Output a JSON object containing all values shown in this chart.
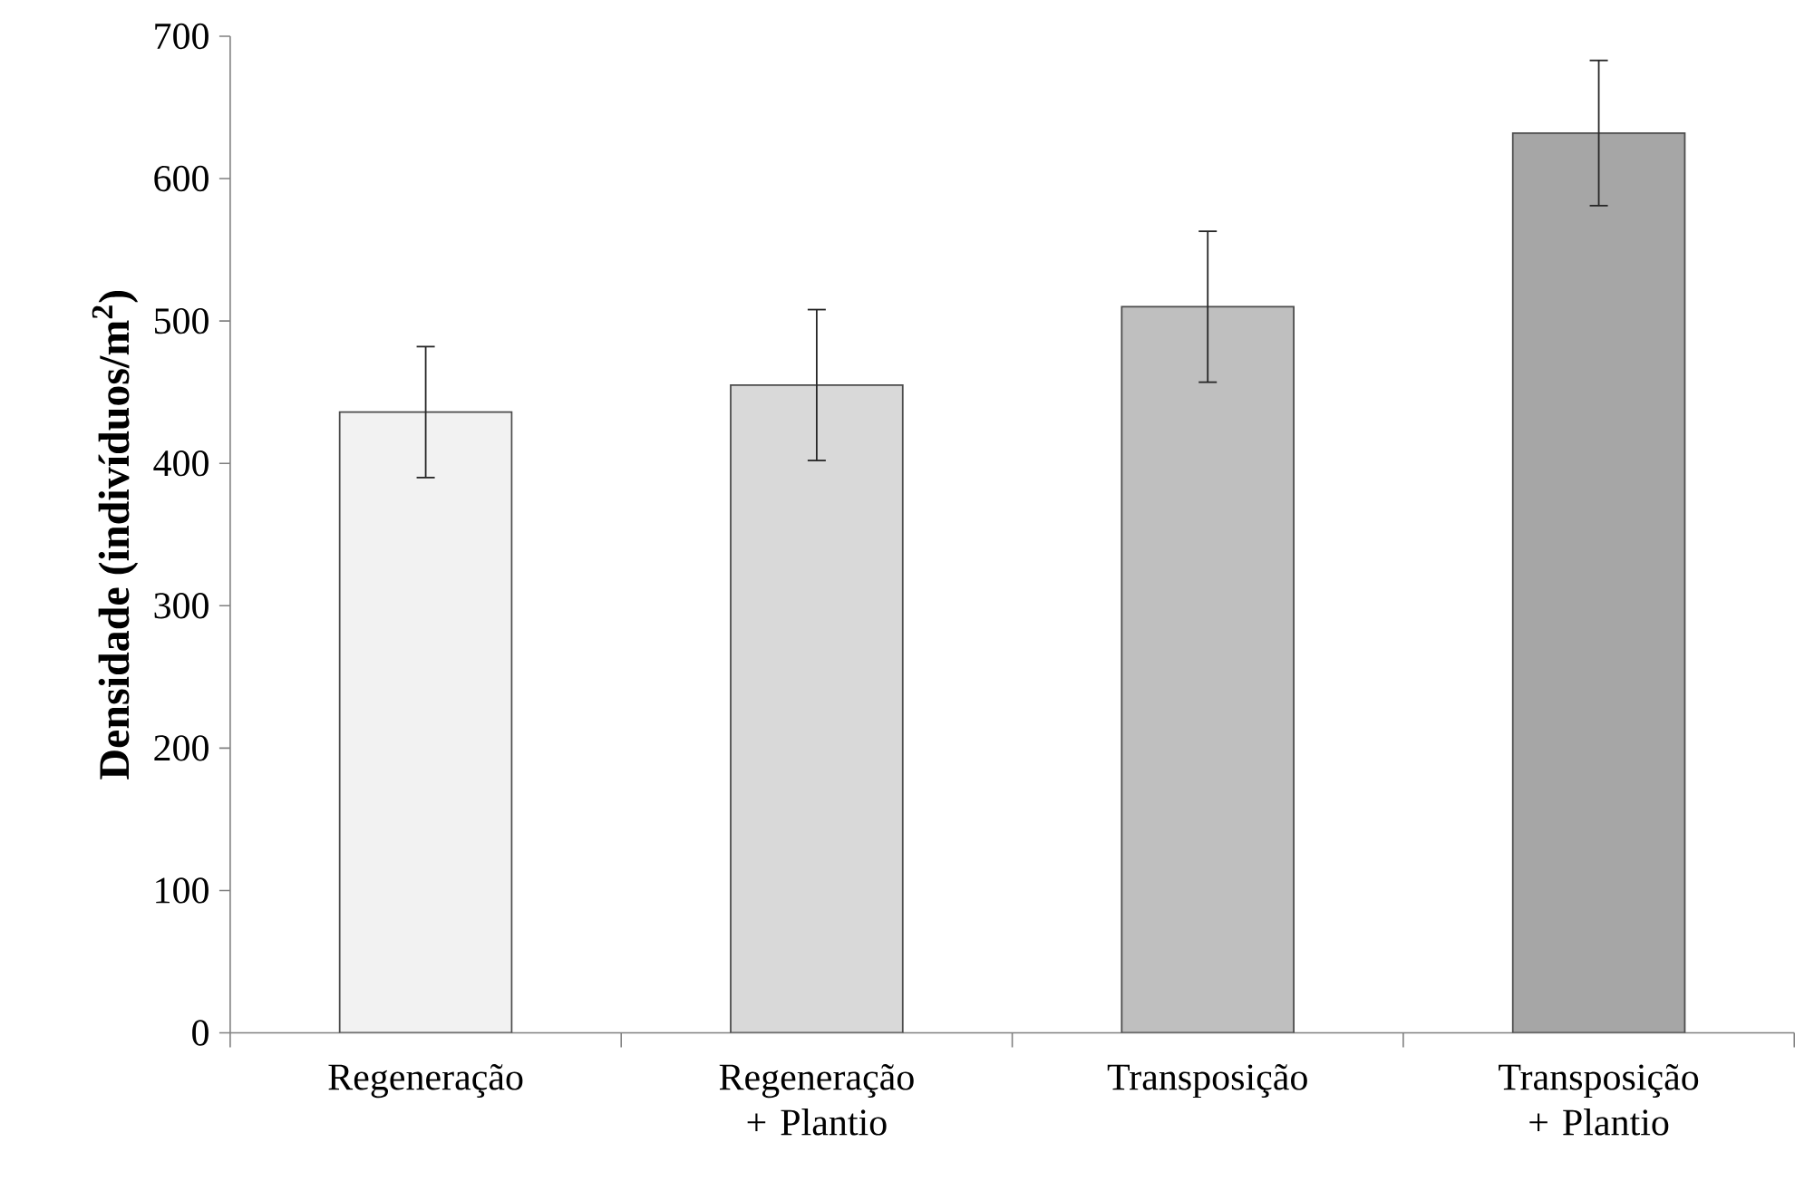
{
  "chart_data": {
    "type": "bar",
    "ylabel": "Densidade (indivíduos/m$^{2}$)",
    "categories": [
      "Regeneração",
      "Regeneração + Plantio",
      "Transposição",
      "Transposição + Plantio"
    ],
    "values": [
      436,
      455,
      510,
      632
    ],
    "errors": [
      46,
      53,
      53,
      51
    ],
    "colors": [
      "#f2f2f2",
      "#d9d9d9",
      "#bfbfbf",
      "#a6a6a6"
    ],
    "ylim": [
      0,
      700
    ],
    "yticks": [
      0,
      100,
      200,
      300,
      400,
      500,
      600,
      700
    ],
    "grid": false
  }
}
